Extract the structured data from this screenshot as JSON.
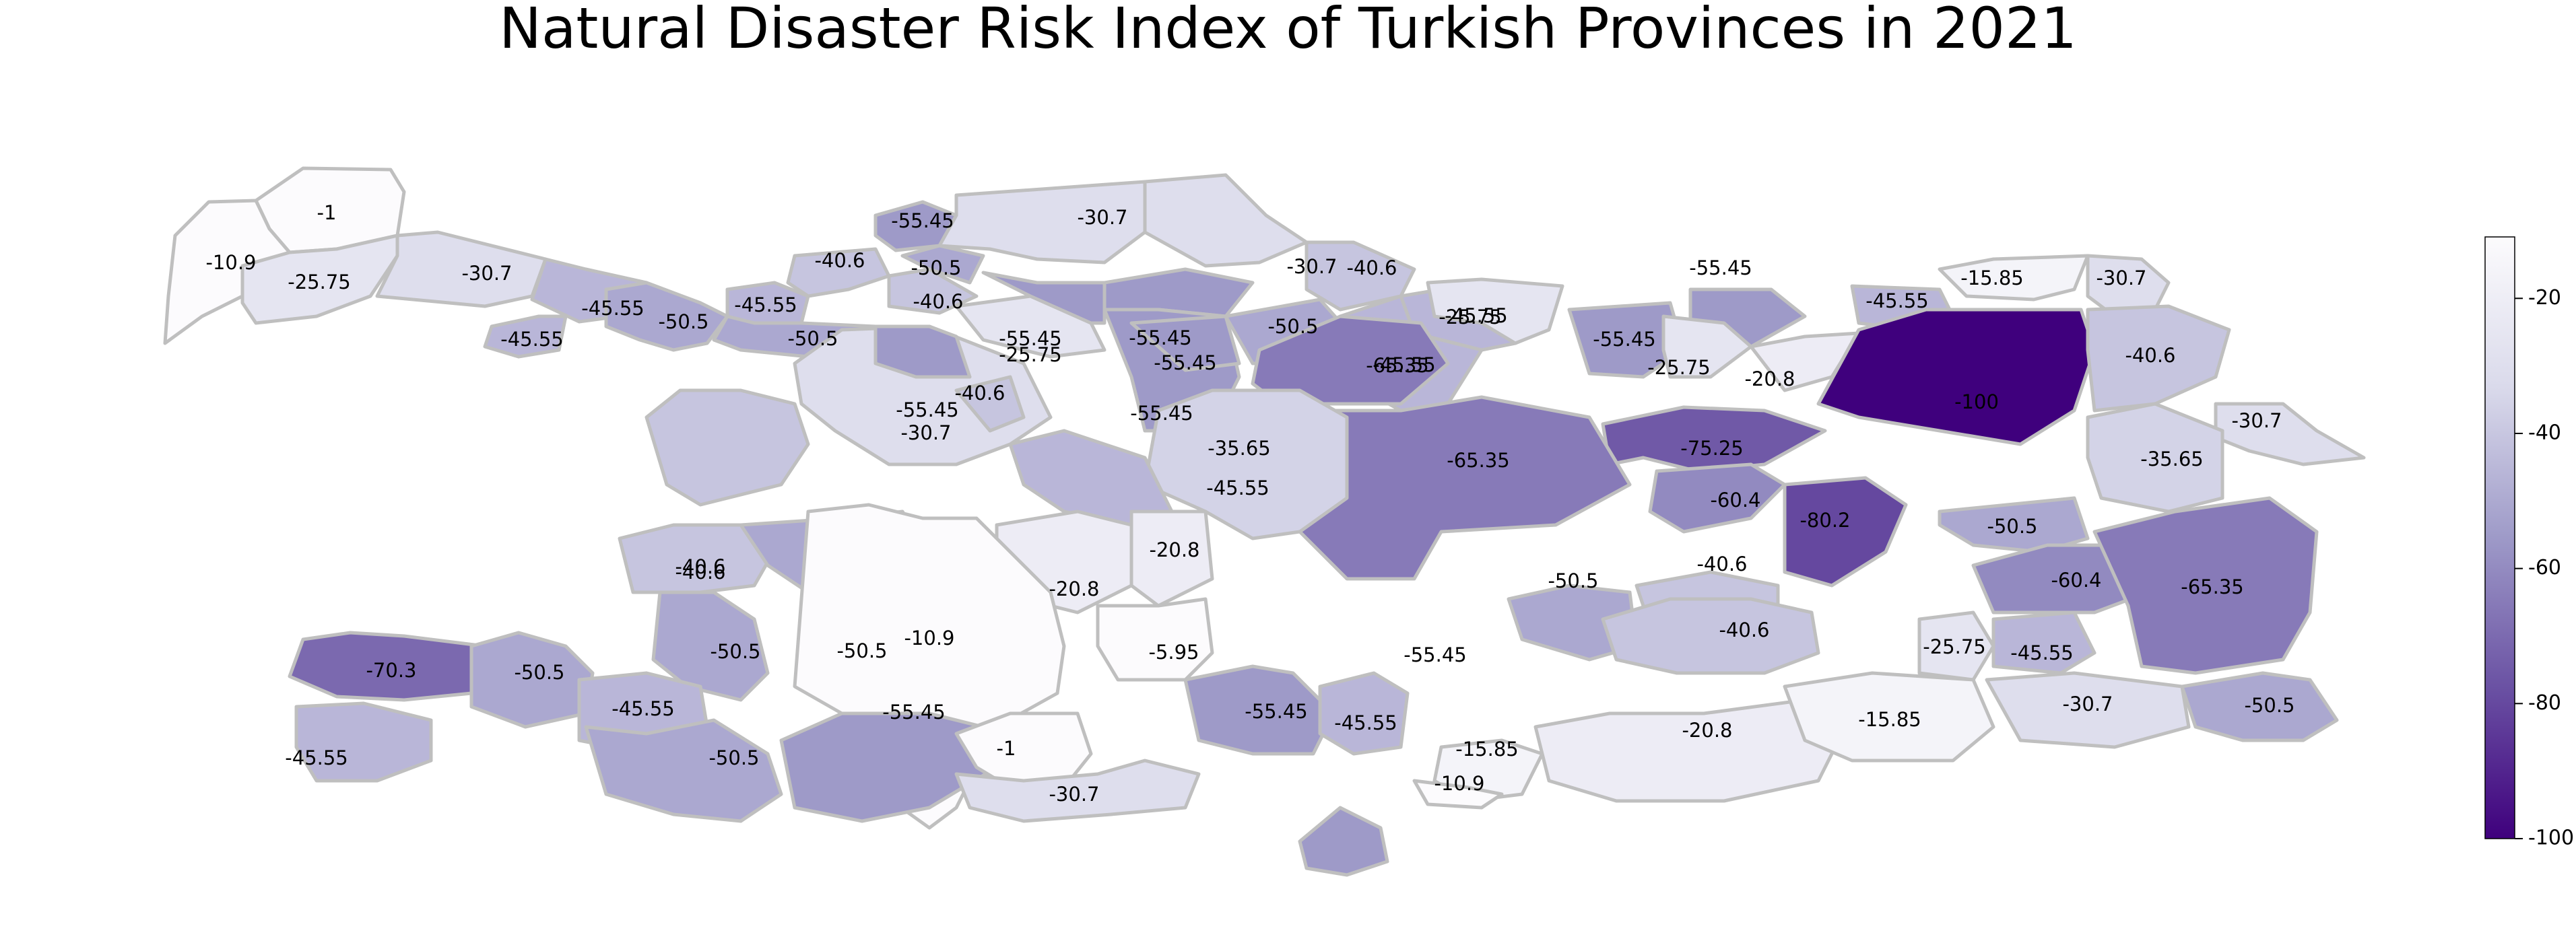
{
  "title": "Natural Disaster Risk Index of Turkish Provinces in 2021",
  "colorbar": {
    "min": -100,
    "max": -10.9,
    "ticks": [
      "-20",
      "-40",
      "-60",
      "-80",
      "-100"
    ],
    "colors": {
      "high": "#fcfbfd",
      "low": "#3f007d"
    }
  },
  "chart_data": {
    "type": "choropleth",
    "colormap": "Purples_r",
    "values": [
      -1.0,
      -10.9,
      -25.75,
      -30.7,
      -45.55,
      -45.55,
      -50.5,
      -45.55,
      -50.5,
      -40.6,
      -55.45,
      -40.6,
      -50.5,
      -30.7,
      -25.75,
      -30.7,
      -45.55,
      -55.45,
      -55.45,
      -55.45,
      -45.55,
      -55.45,
      -50.5,
      -30.7,
      -55.45,
      -40.6,
      -40.6,
      -65.35,
      -25.75,
      -55.45,
      -55.45,
      -45.55,
      -25.75,
      -20.8,
      -100.0,
      -15.85,
      -30.7,
      -40.6,
      -30.7,
      -35.65,
      -75.25,
      -60.4,
      -65.35,
      -80.2,
      -50.5,
      -35.65,
      -45.55,
      -20.8,
      -20.8,
      -5.95,
      -40.6,
      -40.6,
      -50.5,
      -50.5,
      -10.9,
      -70.3,
      -50.5,
      -45.55,
      -45.55,
      -50.5,
      -55.45,
      -1.0,
      -30.7,
      -55.45,
      -45.55,
      -55.45,
      -15.85,
      -10.9,
      -50.5,
      -40.6,
      -20.8,
      -60.4,
      -40.6,
      -25.75,
      -45.55,
      -15.85,
      -65.35,
      -30.7,
      -50.5
    ]
  }
}
